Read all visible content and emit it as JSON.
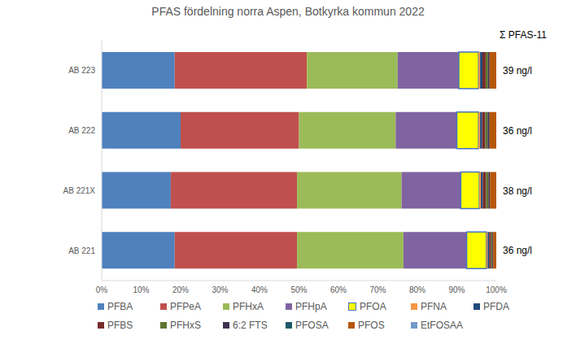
{
  "chart_data": {
    "type": "bar",
    "title": "PFAS fördelning norra Aspen, Botkyrka kommun 2022",
    "orientation": "horizontal",
    "stacked": true,
    "grid": false,
    "legend": "bottom",
    "categories": [
      "AB 223",
      "AB 222",
      "AB 221X",
      "AB 221"
    ],
    "xlim": [
      0,
      100
    ],
    "xticks": [
      {
        "value": 0,
        "label": "0%"
      },
      {
        "value": 10,
        "label": "10%"
      },
      {
        "value": 20,
        "label": "20%"
      },
      {
        "value": 30,
        "label": "30%"
      },
      {
        "value": 40,
        "label": "40%"
      },
      {
        "value": 50,
        "label": "50%"
      },
      {
        "value": 60,
        "label": "60%"
      },
      {
        "value": 70,
        "label": "70%"
      },
      {
        "value": 80,
        "label": "80%"
      },
      {
        "value": 90,
        "label": "90%"
      },
      {
        "value": 100,
        "label": "100%"
      }
    ],
    "series": [
      {
        "name": "PFBA",
        "color": "#4F81BD",
        "values": [
          18.5,
          20,
          17.5,
          18.5
        ]
      },
      {
        "name": "PFPeA",
        "color": "#C0504D",
        "values": [
          33.5,
          30,
          32,
          31
        ]
      },
      {
        "name": "PFHxA",
        "color": "#9BBB59",
        "values": [
          23,
          24.5,
          26.5,
          27
        ]
      },
      {
        "name": "PFHpA",
        "color": "#8064A2",
        "values": [
          15.5,
          15.5,
          15,
          16
        ]
      },
      {
        "name": "PFOA",
        "color": "#FFFF00",
        "values": [
          5,
          5.5,
          4.7,
          5
        ]
      },
      {
        "name": "PFNA",
        "color": "#F79646",
        "values": [
          0.4,
          0.4,
          0.4,
          0.3
        ]
      },
      {
        "name": "PFDA",
        "color": "#1F497D",
        "values": [
          0.6,
          0.5,
          0.5,
          0.4
        ]
      },
      {
        "name": "PFBS",
        "color": "#772C2A",
        "values": [
          0.8,
          0.8,
          0.8,
          0.5
        ]
      },
      {
        "name": "PFHxS",
        "color": "#5F7530",
        "values": [
          0.6,
          0.6,
          0.6,
          0.3
        ]
      },
      {
        "name": "6:2 FTS",
        "color": "#3F3151",
        "values": [
          0.4,
          0.5,
          0.4,
          0.2
        ]
      },
      {
        "name": "PFOSA",
        "color": "#215968",
        "values": [
          0,
          0,
          0,
          0
        ]
      },
      {
        "name": "PFOS",
        "color": "#B65708",
        "values": [
          1.7,
          1.7,
          1.6,
          0.8
        ]
      },
      {
        "name": "EtFOSAA",
        "color": "#729ACA",
        "values": [
          0,
          0,
          0,
          0
        ]
      }
    ],
    "totals": {
      "name": "Σ PFAS-11",
      "values": [
        39,
        36,
        38,
        36
      ],
      "value_labels": [
        "39 ng/l",
        "36 ng/l",
        "38 ng/l",
        "36 ng/l"
      ]
    }
  }
}
